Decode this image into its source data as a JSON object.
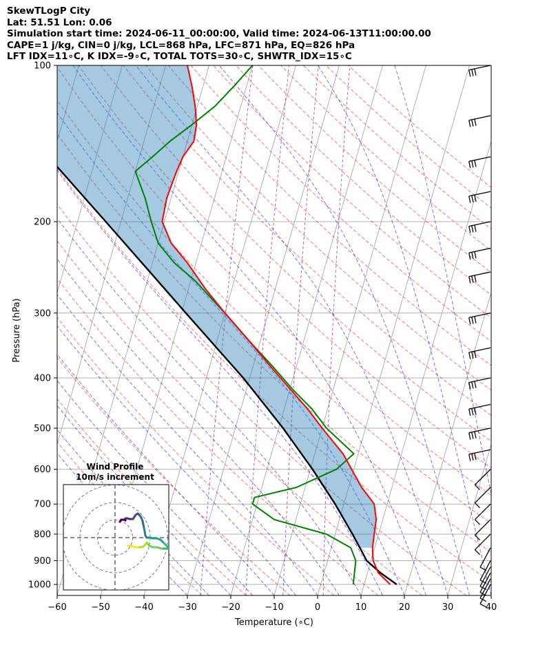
{
  "header": {
    "line1": "SkewTLogP City",
    "line2": "Lat: 51.51   Lon: 0.06",
    "line3": "Simulation start time: 2024-06-11_00:00:00, Valid time: 2024-06-13T11:00:00.00",
    "line4": "CAPE=1 j/kg, CIN=0 j/kg, LCL=868 hPa, LFC=871 hPa, EQ=826 hPa",
    "line5": "LFT IDX=11$^\\circ$C, K IDX=-9$^\\circ$C, TOTAL TOTS=30$^\\circ$C, SHWTR_IDX=15$^\\circ$C"
  },
  "header_display": {
    "line5": "LFT IDX=11∘C, K IDX=-9∘C, TOTAL TOTS=30∘C, SHWTR_IDX=15∘C"
  },
  "chart_data": {
    "type": "line",
    "subtype": "skew-t log-p diagram",
    "xlabel": "Temperature (∘C)",
    "ylabel": "Pressure (hPa)",
    "xlim": [
      -60,
      40
    ],
    "ylim": [
      1050,
      100
    ],
    "y_scale": "log",
    "x_ticks": [
      -60,
      -50,
      -40,
      -30,
      -20,
      -10,
      0,
      10,
      20,
      30,
      40
    ],
    "y_ticks": [
      1000,
      900,
      800,
      700,
      600,
      500,
      400,
      300,
      200,
      100
    ],
    "grid": true,
    "colors": {
      "temperature": "#ff0000",
      "dewpoint": "#008000",
      "parcel": "#000000",
      "cape_fill": "#1f77b4",
      "dry_adiabats": "#ff0000",
      "moist_adiabats": "#0000ff",
      "mixing_ratio": "#800080",
      "isotherms": "#808080"
    },
    "series": [
      {
        "key": "temperature",
        "points": [
          [
            1000,
            16
          ],
          [
            950,
            12.5
          ],
          [
            900,
            10.5
          ],
          [
            850,
            9.5
          ],
          [
            800,
            9
          ],
          [
            750,
            8.5
          ],
          [
            700,
            7
          ],
          [
            650,
            3
          ],
          [
            600,
            -0.5
          ],
          [
            560,
            -3.5
          ],
          [
            500,
            -10
          ],
          [
            460,
            -14.5
          ],
          [
            420,
            -20
          ],
          [
            380,
            -26
          ],
          [
            340,
            -32.5
          ],
          [
            300,
            -40
          ],
          [
            270,
            -46
          ],
          [
            240,
            -52
          ],
          [
            220,
            -57
          ],
          [
            200,
            -60.5
          ],
          [
            180,
            -61
          ],
          [
            160,
            -60.5
          ],
          [
            150,
            -60
          ],
          [
            140,
            -58.5
          ],
          [
            130,
            -59
          ],
          [
            120,
            -60.5
          ],
          [
            110,
            -62.5
          ],
          [
            100,
            -65
          ]
        ]
      },
      {
        "key": "dewpoint",
        "points": [
          [
            1000,
            7.5
          ],
          [
            950,
            7
          ],
          [
            900,
            6.5
          ],
          [
            850,
            4.5
          ],
          [
            800,
            -2
          ],
          [
            750,
            -15
          ],
          [
            700,
            -21
          ],
          [
            680,
            -21
          ],
          [
            650,
            -12
          ],
          [
            600,
            -4
          ],
          [
            560,
            -1
          ],
          [
            500,
            -9
          ],
          [
            460,
            -13.5
          ],
          [
            420,
            -19.5
          ],
          [
            380,
            -25.5
          ],
          [
            340,
            -32.5
          ],
          [
            300,
            -40
          ],
          [
            260,
            -49
          ],
          [
            240,
            -55
          ],
          [
            220,
            -60
          ],
          [
            200,
            -63
          ],
          [
            180,
            -66
          ],
          [
            160,
            -70
          ],
          [
            150,
            -67
          ],
          [
            140,
            -64
          ],
          [
            130,
            -60
          ],
          [
            120,
            -56
          ],
          [
            110,
            -53
          ],
          [
            100,
            -50
          ]
        ]
      },
      {
        "key": "parcel",
        "points": [
          [
            1000,
            17.5
          ],
          [
            950,
            13
          ],
          [
            900,
            9
          ],
          [
            868,
            7.5
          ],
          [
            850,
            6.6
          ],
          [
            800,
            4
          ],
          [
            700,
            -2
          ],
          [
            600,
            -9.5
          ],
          [
            500,
            -19
          ],
          [
            400,
            -31.5
          ],
          [
            300,
            -49
          ],
          [
            250,
            -60
          ],
          [
            200,
            -73.5
          ],
          [
            150,
            -91
          ],
          [
            100,
            -116
          ]
        ]
      }
    ],
    "wind_barbs_pressure_levels": [
      1000,
      975,
      950,
      925,
      900,
      850,
      800,
      750,
      700,
      650,
      600,
      550,
      500,
      450,
      400,
      350,
      300,
      250,
      225,
      200,
      175,
      150,
      125,
      100
    ],
    "hodograph": {
      "title": "Wind Profile\n10m/s increment",
      "rings_ms": [
        10,
        20,
        30
      ],
      "colormap": "viridis"
    }
  }
}
